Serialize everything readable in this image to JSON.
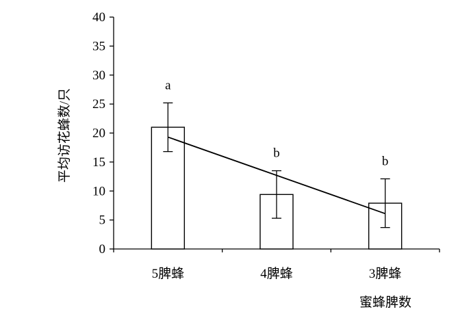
{
  "chart_data": {
    "type": "bar",
    "title": "",
    "ylabel": "平均访花蜂数/只",
    "xlabel": "蜜蜂脾数",
    "ylim": [
      0,
      40
    ],
    "yticks": [
      0,
      5,
      10,
      15,
      20,
      25,
      30,
      35,
      40
    ],
    "categories": [
      "5脾蜂",
      "4脾蜂",
      "3脾蜂"
    ],
    "values": [
      21,
      9.4,
      7.9
    ],
    "errors": [
      4.2,
      4.1,
      4.2
    ],
    "significance": [
      "a",
      "b",
      "b"
    ],
    "trendline": {
      "start": 19.3,
      "end": 6.1
    },
    "grid": false,
    "legend": "none",
    "colors": {
      "bar_fill": "#ffffff",
      "stroke": "#000000"
    }
  }
}
